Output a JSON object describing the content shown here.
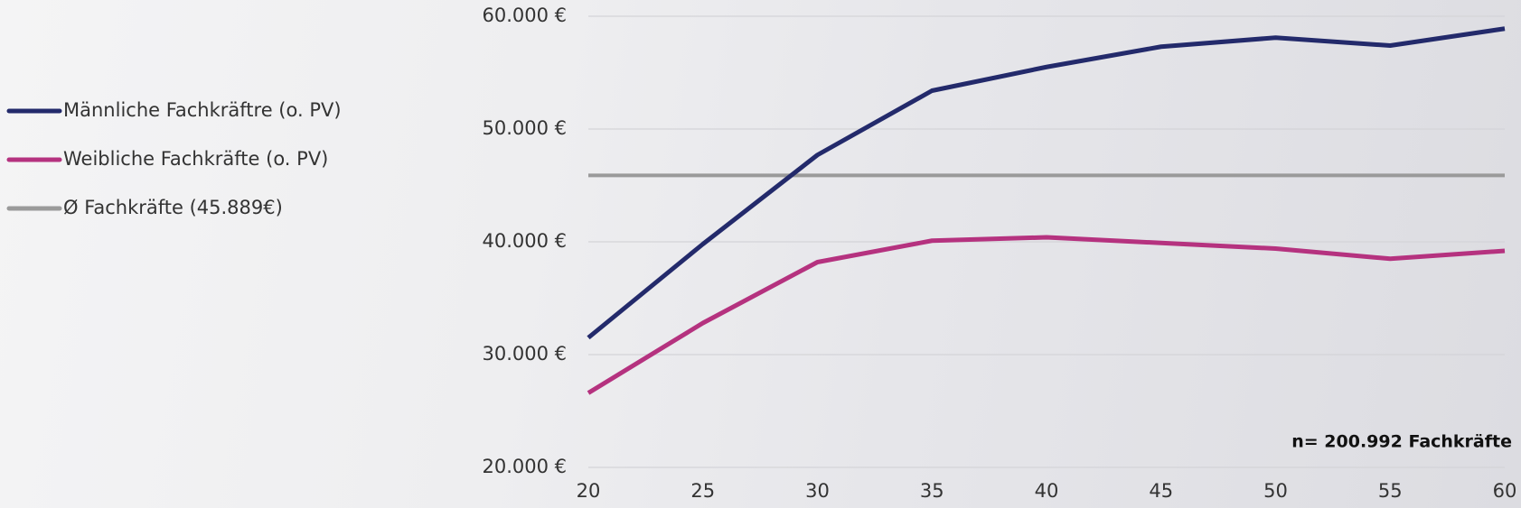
{
  "chart_data": {
    "type": "line",
    "x": [
      20,
      25,
      30,
      35,
      40,
      45,
      50,
      55,
      60
    ],
    "series": [
      {
        "name": "Männliche Fachkräftre (o. PV)",
        "color": "#232a6b",
        "values": [
          31500,
          39800,
          47700,
          53400,
          55500,
          57300,
          58100,
          57400,
          58900
        ]
      },
      {
        "name": "Weibliche Fachkräfte (o. PV)",
        "color": "#b5327f",
        "values": [
          26600,
          32800,
          38200,
          40100,
          40400,
          39900,
          39400,
          38500,
          39200
        ]
      },
      {
        "name": "Ø Fachkräfte (45.889€)",
        "color": "#9a9a9a",
        "values": [
          45889,
          45889,
          45889,
          45889,
          45889,
          45889,
          45889,
          45889,
          45889
        ]
      }
    ],
    "xlim": [
      20,
      60
    ],
    "xticks": [
      20,
      25,
      30,
      35,
      40,
      45,
      50,
      55,
      60
    ],
    "ylim": [
      20000,
      60000
    ],
    "yticks": [
      {
        "value": 20000,
        "label": "20.000 €"
      },
      {
        "value": 30000,
        "label": "30.000 €"
      },
      {
        "value": 40000,
        "label": "40.000 €"
      },
      {
        "value": 50000,
        "label": "50.000 €"
      },
      {
        "value": 60000,
        "label": "60.000 €"
      }
    ],
    "grid": true,
    "legend": "left",
    "annotation": "n= 200.992 Fachkräfte"
  }
}
